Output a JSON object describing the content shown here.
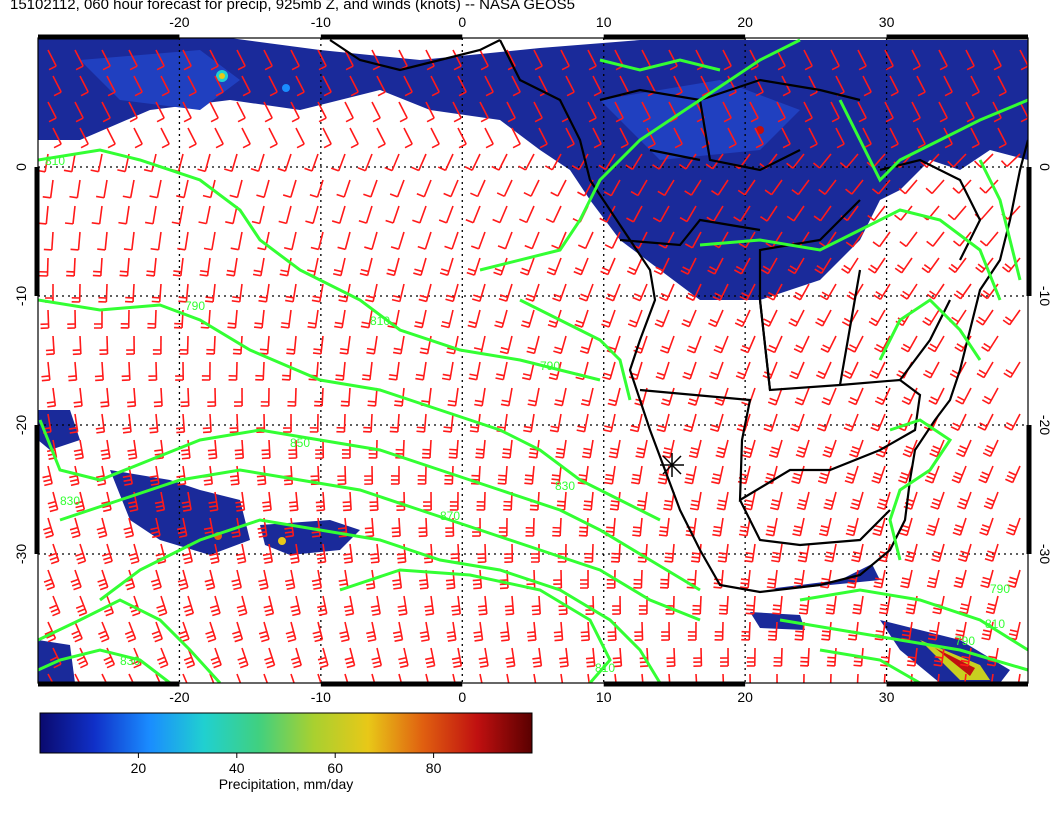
{
  "title": "15102112, 060 hour forecast for precip, 925mb Z, and winds (knots) -- NASA GEOS5",
  "map": {
    "lon_range": [
      -30,
      40
    ],
    "lat_range": [
      -40,
      10
    ],
    "lon_ticks": [
      "-20",
      "-10",
      "0",
      "10",
      "20",
      "30"
    ],
    "lat_ticks": [
      "0",
      "-10",
      "-20",
      "-30"
    ],
    "grid_style": "dotted",
    "layers": [
      "precipitation shading",
      "925mb geopotential height contours",
      "wind barbs",
      "coastlines and country borders"
    ],
    "colors": {
      "contour": "#33ff33",
      "barb": "#ff1a1a",
      "coast": "#000000",
      "precip_low": "#1a2a9a"
    },
    "contour_labels": [
      "810",
      "810",
      "790",
      "830",
      "830",
      "850",
      "870",
      "830",
      "810",
      "790",
      "810",
      "790",
      "790"
    ],
    "wind_direction": "southerly to southeasterly trades, converging toward the coast",
    "marker": "station-star"
  },
  "colorbar": {
    "label": "Precipitation, mm/day",
    "ticks": [
      "20",
      "40",
      "60",
      "80"
    ],
    "range": [
      0,
      100
    ],
    "colors": [
      "#0a0a6e",
      "#1030c8",
      "#1a8cff",
      "#20d0d0",
      "#40d080",
      "#a8d030",
      "#e8c818",
      "#e06010",
      "#c01010",
      "#5a0000"
    ]
  }
}
